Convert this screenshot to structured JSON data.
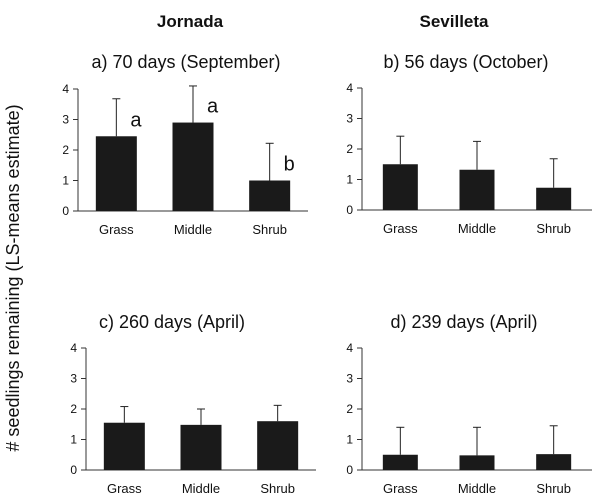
{
  "figure": {
    "ylabel": "# seedlings remaining  (LS-means estimate)",
    "column_headers": [
      "Jornada",
      "Sevilleta"
    ],
    "colors": {
      "bar": "#1a1a1a",
      "axis": "#333333",
      "errorbar": "#222222"
    }
  },
  "chart_data": [
    {
      "type": "bar",
      "panel": "a",
      "title": "a) 70 days (September)",
      "categories": [
        "Grass",
        "Middle",
        "Shrub"
      ],
      "values": [
        2.45,
        2.9,
        1.0
      ],
      "error_upper": [
        3.68,
        4.1,
        2.22
      ],
      "significance_letters": [
        "a",
        "a",
        "b"
      ],
      "ylim": [
        0,
        4
      ],
      "yticks": [
        "0",
        "1",
        "2",
        "3",
        "4"
      ],
      "xlabel": "",
      "ylabel": ""
    },
    {
      "type": "bar",
      "panel": "b",
      "title": "b) 56 days (October)",
      "categories": [
        "Grass",
        "Middle",
        "Shrub"
      ],
      "values": [
        1.5,
        1.32,
        0.73
      ],
      "error_upper": [
        2.42,
        2.25,
        1.68
      ],
      "significance_letters": [
        "",
        "",
        ""
      ],
      "ylim": [
        0,
        4
      ],
      "yticks": [
        "0",
        "1",
        "2",
        "3",
        "4"
      ],
      "xlabel": "",
      "ylabel": ""
    },
    {
      "type": "bar",
      "panel": "c",
      "title": "c) 260 days (April)",
      "categories": [
        "Grass",
        "Middle",
        "Shrub"
      ],
      "values": [
        1.55,
        1.48,
        1.6
      ],
      "error_upper": [
        2.08,
        2.0,
        2.12
      ],
      "significance_letters": [
        "",
        "",
        ""
      ],
      "ylim": [
        0,
        4
      ],
      "yticks": [
        "0",
        "1",
        "2",
        "3",
        "4"
      ],
      "xlabel": "",
      "ylabel": ""
    },
    {
      "type": "bar",
      "panel": "d",
      "title": "d) 239 days (April)",
      "categories": [
        "Grass",
        "Middle",
        "Shrub"
      ],
      "values": [
        0.5,
        0.48,
        0.52
      ],
      "error_upper": [
        1.4,
        1.4,
        1.45
      ],
      "significance_letters": [
        "",
        "",
        ""
      ],
      "ylim": [
        0,
        4
      ],
      "yticks": [
        "0",
        "1",
        "2",
        "3",
        "4"
      ],
      "xlabel": "",
      "ylabel": ""
    }
  ]
}
